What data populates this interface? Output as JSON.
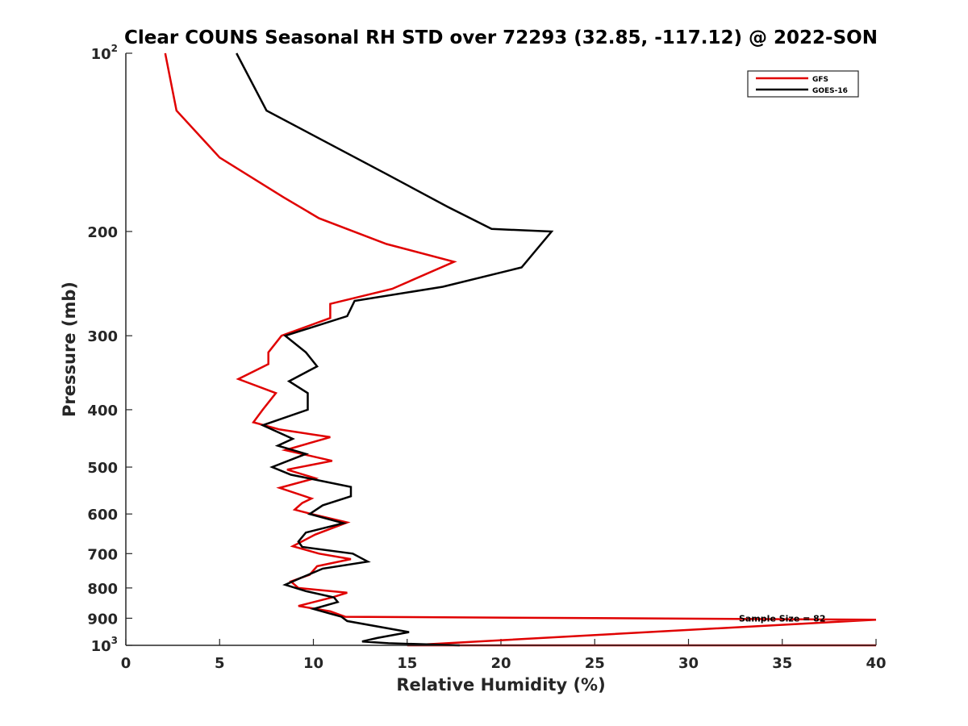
{
  "chart_data": {
    "type": "line",
    "title": "Clear COUNS Seasonal RH STD over 72293 (32.85, -117.12) @ 2022-SON",
    "xlabel": "Relative Humidity (%)",
    "ylabel": "Pressure (mb)",
    "xlim": [
      0,
      40
    ],
    "ylim": [
      100,
      1000
    ],
    "yscale": "log",
    "y_reversed": true,
    "x_ticks": [
      "0",
      "5",
      "10",
      "15",
      "20",
      "25",
      "30",
      "35",
      "40"
    ],
    "x_tick_values": [
      0,
      5,
      10,
      15,
      20,
      25,
      30,
      35,
      40
    ],
    "y_tick_values": [
      100,
      200,
      300,
      400,
      500,
      600,
      700,
      800,
      900,
      1000
    ],
    "y_ticks": [
      {
        "base": "10",
        "exp": "2"
      },
      {
        "base": "200",
        "exp": ""
      },
      {
        "base": "300",
        "exp": ""
      },
      {
        "base": "400",
        "exp": ""
      },
      {
        "base": "500",
        "exp": ""
      },
      {
        "base": "600",
        "exp": ""
      },
      {
        "base": "700",
        "exp": ""
      },
      {
        "base": "800",
        "exp": ""
      },
      {
        "base": "900",
        "exp": ""
      },
      {
        "base": "10",
        "exp": "3"
      }
    ],
    "legend_position": "top-right",
    "annotation": "Sample Size = 82",
    "annotation_at": {
      "x": 35,
      "p": 900
    },
    "series": [
      {
        "name": "GFS",
        "color": "#e00000",
        "points": [
          [
            2.1,
            100
          ],
          [
            2.7,
            125
          ],
          [
            5.0,
            150
          ],
          [
            8.4,
            175
          ],
          [
            10.3,
            190
          ],
          [
            13.9,
            210
          ],
          [
            17.5,
            225
          ],
          [
            14.2,
            250
          ],
          [
            10.9,
            265
          ],
          [
            10.9,
            280
          ],
          [
            8.3,
            300
          ],
          [
            7.6,
            320
          ],
          [
            7.6,
            335
          ],
          [
            6.0,
            355
          ],
          [
            8.0,
            375
          ],
          [
            7.3,
            400
          ],
          [
            6.8,
            420
          ],
          [
            8.2,
            432
          ],
          [
            10.9,
            445
          ],
          [
            8.5,
            468
          ],
          [
            11.0,
            488
          ],
          [
            8.6,
            505
          ],
          [
            10.1,
            522
          ],
          [
            8.2,
            542
          ],
          [
            9.9,
            565
          ],
          [
            9.4,
            575
          ],
          [
            9.0,
            590
          ],
          [
            9.9,
            600
          ],
          [
            11.8,
            620
          ],
          [
            10.1,
            650
          ],
          [
            8.9,
            680
          ],
          [
            10.3,
            700
          ],
          [
            12.0,
            715
          ],
          [
            10.2,
            735
          ],
          [
            9.8,
            760
          ],
          [
            8.8,
            780
          ],
          [
            9.2,
            800
          ],
          [
            11.8,
            815
          ],
          [
            11.0,
            830
          ],
          [
            9.2,
            858
          ],
          [
            10.9,
            876
          ],
          [
            11.7,
            895
          ],
          [
            40,
            905
          ],
          [
            15.0,
            1000
          ],
          [
            40,
            1000
          ]
        ]
      },
      {
        "name": "GOES-16",
        "color": "#000000",
        "points": [
          [
            5.9,
            100
          ],
          [
            7.5,
            125
          ],
          [
            13.9,
            160
          ],
          [
            17.2,
            182
          ],
          [
            19.5,
            198
          ],
          [
            22.7,
            200
          ],
          [
            21.1,
            230
          ],
          [
            16.9,
            248
          ],
          [
            12.2,
            262
          ],
          [
            11.8,
            278
          ],
          [
            8.5,
            300
          ],
          [
            9.6,
            320
          ],
          [
            10.2,
            338
          ],
          [
            8.7,
            358
          ],
          [
            9.7,
            375
          ],
          [
            9.7,
            400
          ],
          [
            7.3,
            425
          ],
          [
            8.9,
            448
          ],
          [
            8.1,
            460
          ],
          [
            9.6,
            475
          ],
          [
            7.8,
            500
          ],
          [
            8.8,
            515
          ],
          [
            10.1,
            525
          ],
          [
            12.0,
            540
          ],
          [
            12.0,
            560
          ],
          [
            10.5,
            580
          ],
          [
            9.8,
            600
          ],
          [
            11.6,
            622
          ],
          [
            9.6,
            645
          ],
          [
            9.2,
            668
          ],
          [
            9.4,
            682
          ],
          [
            12.1,
            700
          ],
          [
            12.9,
            722
          ],
          [
            10.5,
            742
          ],
          [
            9.3,
            770
          ],
          [
            8.5,
            790
          ],
          [
            9.6,
            810
          ],
          [
            11.1,
            830
          ],
          [
            11.3,
            845
          ],
          [
            10.0,
            868
          ],
          [
            11.5,
            895
          ],
          [
            11.8,
            910
          ],
          [
            15.1,
            950
          ],
          [
            13.4,
            972
          ],
          [
            12.6,
            985
          ],
          [
            14.0,
            992
          ],
          [
            17.8,
            1000
          ]
        ]
      }
    ]
  }
}
